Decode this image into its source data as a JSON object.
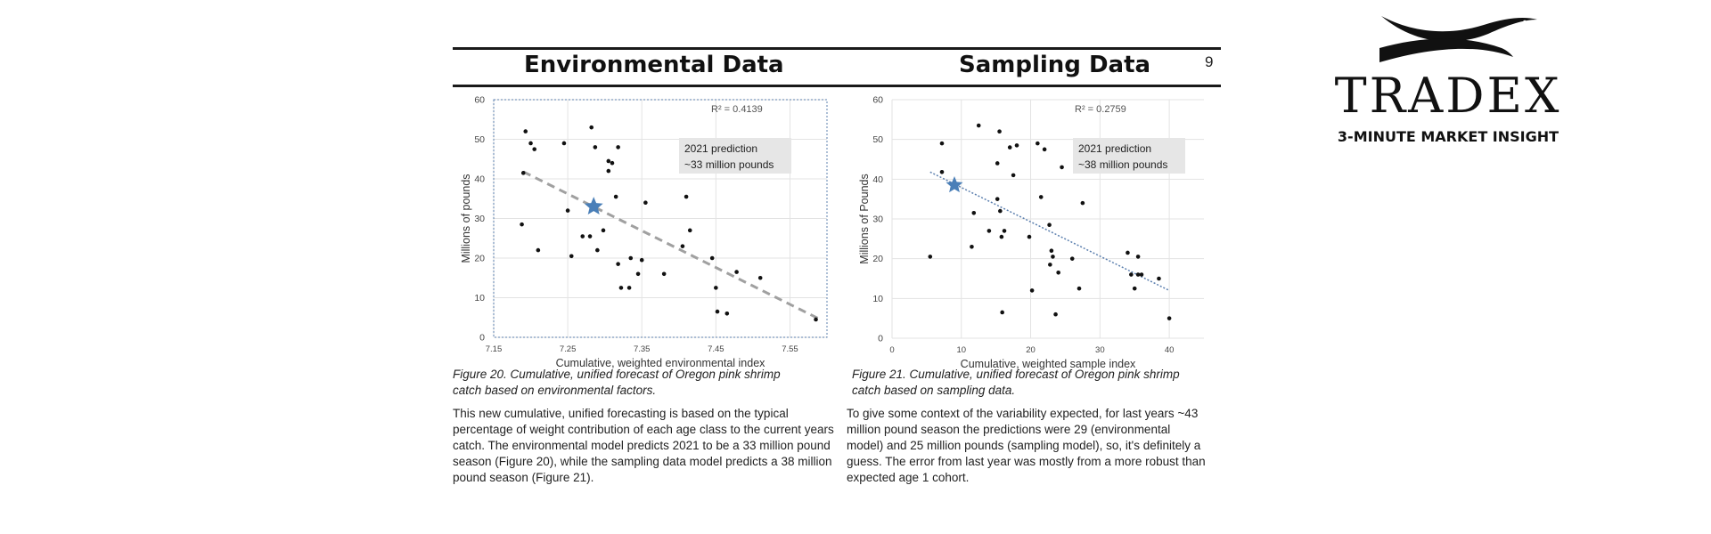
{
  "page": {
    "page_number": "9",
    "left_section_title": "Environmental Data",
    "right_section_title": "Sampling Data"
  },
  "logo": {
    "name": "TRADEX",
    "tagline": "3-MINUTE MARKET INSIGHT"
  },
  "chart_data": [
    {
      "type": "scatter",
      "xlabel": "Cumulative, weighted environmental index",
      "ylabel": "Millions of pounds",
      "xlim": [
        7.15,
        7.6
      ],
      "ylim": [
        0,
        60
      ],
      "x_ticks": [
        "7.15",
        "7.25",
        "7.35",
        "7.45",
        "7.55"
      ],
      "x_tick_values": [
        7.15,
        7.25,
        7.35,
        7.45,
        7.55
      ],
      "y_ticks": [
        "0",
        "10",
        "20",
        "30",
        "40",
        "50",
        "60"
      ],
      "y_tick_values": [
        0,
        10,
        20,
        30,
        40,
        50,
        60
      ],
      "grid": true,
      "r_squared": "R² = 0.4139",
      "annotation": [
        "2021 prediction",
        "~33 million pounds"
      ],
      "trendline": {
        "x": [
          7.19,
          7.59
        ],
        "y": [
          41.8,
          4.6
        ],
        "style": "dashed",
        "color": "#a0a0a0"
      },
      "prediction": {
        "x": 7.285,
        "y": 33,
        "color": "#4a7fb8"
      },
      "points": [
        [
          7.193,
          52
        ],
        [
          7.19,
          41.5
        ],
        [
          7.188,
          28.5
        ],
        [
          7.2,
          49
        ],
        [
          7.205,
          47.5
        ],
        [
          7.21,
          22
        ],
        [
          7.245,
          49
        ],
        [
          7.255,
          20.5
        ],
        [
          7.25,
          32
        ],
        [
          7.27,
          25.5
        ],
        [
          7.282,
          53
        ],
        [
          7.287,
          48
        ],
        [
          7.28,
          25.5
        ],
        [
          7.29,
          22
        ],
        [
          7.298,
          27
        ],
        [
          7.305,
          42
        ],
        [
          7.31,
          44
        ],
        [
          7.305,
          44.5
        ],
        [
          7.318,
          48
        ],
        [
          7.315,
          35.5
        ],
        [
          7.318,
          18.5
        ],
        [
          7.322,
          12.5
        ],
        [
          7.333,
          12.5
        ],
        [
          7.335,
          20
        ],
        [
          7.345,
          16
        ],
        [
          7.35,
          19.5
        ],
        [
          7.355,
          34
        ],
        [
          7.38,
          16
        ],
        [
          7.41,
          35.5
        ],
        [
          7.405,
          23
        ],
        [
          7.415,
          27
        ],
        [
          7.445,
          20
        ],
        [
          7.45,
          12.5
        ],
        [
          7.452,
          6.5
        ],
        [
          7.465,
          6
        ],
        [
          7.478,
          16.5
        ],
        [
          7.51,
          15
        ],
        [
          7.585,
          4.5
        ]
      ]
    },
    {
      "type": "scatter",
      "xlabel": "Cumulative, weighted sample index",
      "ylabel": "Millions of Pounds",
      "xlim": [
        0,
        45
      ],
      "ylim": [
        0,
        60
      ],
      "x_ticks": [
        "0",
        "10",
        "20",
        "30",
        "40"
      ],
      "x_tick_values": [
        0,
        10,
        20,
        30,
        40
      ],
      "y_ticks": [
        "0",
        "10",
        "20",
        "30",
        "40",
        "50",
        "60"
      ],
      "y_tick_values": [
        0,
        10,
        20,
        30,
        40,
        50,
        60
      ],
      "grid": true,
      "r_squared": "R² = 0.2759",
      "annotation": [
        "2021 prediction",
        "~38 million pounds"
      ],
      "trendline": {
        "x": [
          5.5,
          40
        ],
        "y": [
          41.8,
          12
        ],
        "style": "dotted",
        "color": "#5b7fae"
      },
      "prediction": {
        "x": 9,
        "y": 38.5,
        "color": "#4a7fb8"
      },
      "points": [
        [
          5.5,
          20.5
        ],
        [
          7.2,
          49
        ],
        [
          7.2,
          41.8
        ],
        [
          11.5,
          23
        ],
        [
          11.8,
          31.5
        ],
        [
          12.5,
          53.5
        ],
        [
          14,
          27
        ],
        [
          15.2,
          44
        ],
        [
          15.5,
          52
        ],
        [
          15.2,
          35
        ],
        [
          15.6,
          32
        ],
        [
          15.8,
          25.5
        ],
        [
          16.2,
          27
        ],
        [
          15.9,
          6.5
        ],
        [
          17,
          48
        ],
        [
          17.5,
          41
        ],
        [
          18,
          48.5
        ],
        [
          19.8,
          25.5
        ],
        [
          20.2,
          12
        ],
        [
          21,
          49
        ],
        [
          21.5,
          35.5
        ],
        [
          22,
          47.5
        ],
        [
          22.7,
          28.5
        ],
        [
          22.8,
          18.5
        ],
        [
          23,
          22
        ],
        [
          23.2,
          20.5
        ],
        [
          23.6,
          6
        ],
        [
          24,
          16.5
        ],
        [
          24.5,
          43
        ],
        [
          26,
          20
        ],
        [
          27,
          12.5
        ],
        [
          27.5,
          34
        ],
        [
          34,
          21.5
        ],
        [
          34.5,
          16
        ],
        [
          35,
          12.5
        ],
        [
          35.5,
          20.5
        ],
        [
          35.5,
          16
        ],
        [
          36,
          16
        ],
        [
          38.5,
          15
        ],
        [
          40,
          5
        ]
      ]
    }
  ],
  "figures": [
    {
      "caption": "Figure 20. Cumulative, unified forecast of Oregon pink shrimp catch based on environmental factors.",
      "paragraph": "This new cumulative, unified forecasting is based on the typical percentage of weight contribution of each age class to the current years catch. The environmental model predicts 2021 to be a 33 million pound season (Figure 20), while the sampling data model predicts a 38 million pound season (Figure 21)."
    },
    {
      "caption": "Figure 21. Cumulative, unified forecast of Oregon pink shrimp catch based on sampling data.",
      "paragraph": "To give some context of the variability expected, for last years ~43 million pound season the predictions were 29 (environmental model) and 25 million pounds (sampling model), so, it's definitely a guess. The error from last year was mostly from a more robust than expected age 1 cohort."
    }
  ],
  "colors": {
    "rule": "#1a1a1a",
    "grid": "#e3e3e3",
    "point": "#111111",
    "star": "#4a7fb8",
    "annotation_box": "#e6e6e6",
    "left_plot_frame": "#5b7fae"
  }
}
